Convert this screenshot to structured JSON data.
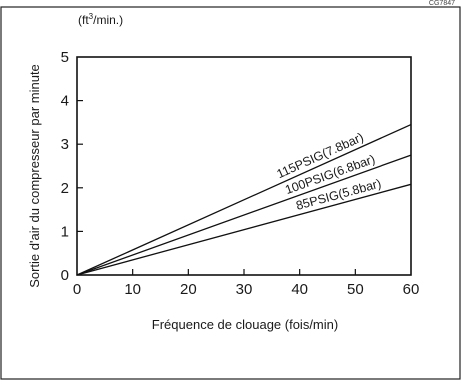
{
  "corner_code": "CG7847",
  "chart_data": {
    "type": "line",
    "unit_label_prefix": "(ft",
    "unit_label_sup": "3",
    "unit_label_suffix": "/min.)",
    "xlabel": "Fréquence de clouage (fois/min)",
    "ylabel": "Sortie d'air du compresseur par minute",
    "xlim": [
      0,
      60
    ],
    "ylim": [
      0,
      5
    ],
    "x_ticks": [
      0,
      10,
      20,
      30,
      40,
      50,
      60
    ],
    "y_ticks": [
      0,
      1,
      2,
      3,
      4,
      5
    ],
    "grid": false,
    "series": [
      {
        "name": "115PSIG(7.8bar)",
        "x": [
          0,
          60
        ],
        "y": [
          0,
          3.45
        ],
        "label_at": 52
      },
      {
        "name": "100PSIG(6.8bar)",
        "x": [
          0,
          60
        ],
        "y": [
          0,
          2.75
        ],
        "label_at": 54
      },
      {
        "name": "85PSIG(5.8bar)",
        "x": [
          0,
          60
        ],
        "y": [
          0,
          2.08
        ],
        "label_at": 55
      }
    ]
  }
}
